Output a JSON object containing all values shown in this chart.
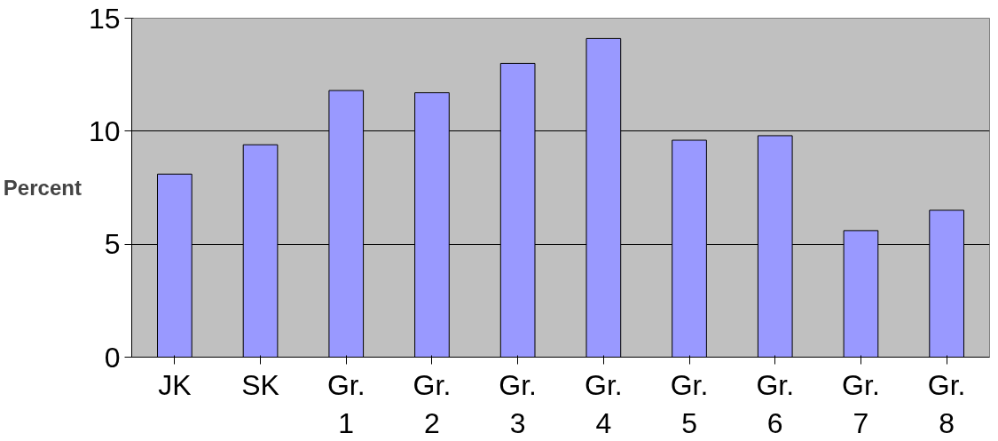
{
  "chart_data": {
    "type": "bar",
    "ylabel": "Percent",
    "categories": [
      "JK",
      "SK",
      "Gr. 1",
      "Gr. 2",
      "Gr. 3",
      "Gr. 4",
      "Gr. 5",
      "Gr. 6",
      "Gr. 7",
      "Gr. 8"
    ],
    "values": [
      8.1,
      9.4,
      11.8,
      11.7,
      13.0,
      14.1,
      9.6,
      9.8,
      5.6,
      6.5
    ],
    "color": "#9999ff",
    "ylim": [
      0,
      15
    ],
    "yticks": [
      0,
      5,
      10,
      15
    ],
    "grid": "y"
  }
}
